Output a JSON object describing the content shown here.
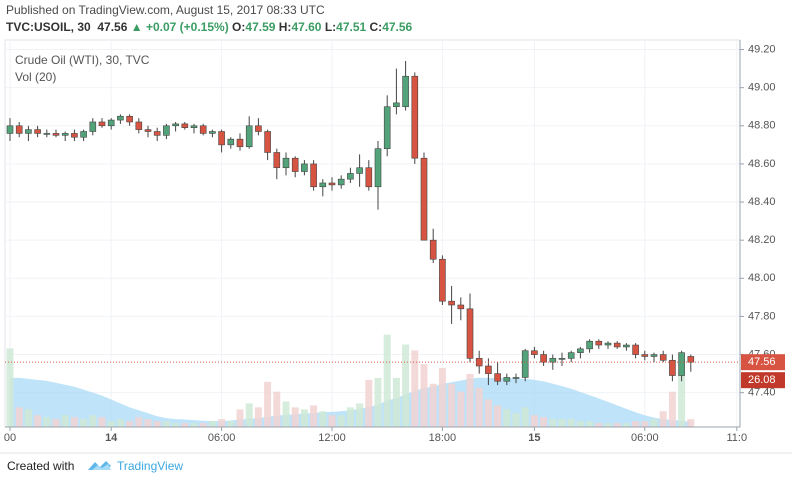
{
  "header": {
    "published": "Published on TradingView.com, August 15, 2017 08:33 UTC",
    "symbol": "TVC:USOIL, 30",
    "last": "47.56",
    "change": "+0.07 (+0.15%)",
    "ohlc": [
      {
        "label": "O:",
        "value": "47.59"
      },
      {
        "label": "H:",
        "value": "47.60"
      },
      {
        "label": "L:",
        "value": "47.51"
      },
      {
        "label": "C:",
        "value": "47.56"
      }
    ]
  },
  "footer": {
    "created": "Created with",
    "brand": "TradingView"
  },
  "chart_data": {
    "type": "candlestick",
    "title": "Crude Oil (WTI), 30, TVC",
    "volume_title": "Vol (20)",
    "up_color": "#53a37a",
    "down_color": "#d75442",
    "volume_up_color": "#cfe9d6",
    "volume_down_color": "#f1d4d2",
    "ma_color": "#a9d9f5",
    "grid": true,
    "categories": [
      "00",
      null,
      null,
      null,
      null,
      null,
      null,
      null,
      null,
      null,
      null,
      "14",
      null,
      null,
      null,
      null,
      null,
      null,
      null,
      null,
      null,
      null,
      null,
      "06:00",
      null,
      null,
      null,
      null,
      null,
      null,
      null,
      null,
      null,
      null,
      null,
      "12:00",
      null,
      null,
      null,
      null,
      null,
      null,
      null,
      null,
      null,
      null,
      null,
      "18:00",
      null,
      null,
      null,
      null,
      null,
      null,
      null,
      null,
      null,
      "15",
      null,
      null,
      null,
      null,
      null,
      null,
      null,
      null,
      null,
      null,
      null,
      "06:00",
      null,
      null,
      null,
      null,
      null,
      null,
      null,
      null,
      null,
      "11:0"
    ],
    "open": [
      48.76,
      48.8,
      48.76,
      48.78,
      48.76,
      48.76,
      48.75,
      48.76,
      48.74,
      48.77,
      48.82,
      48.8,
      48.83,
      48.85,
      48.82,
      48.78,
      48.77,
      48.75,
      48.8,
      48.81,
      48.79,
      48.8,
      48.76,
      48.77,
      48.7,
      48.73,
      48.69,
      48.8,
      48.77,
      48.66,
      48.58,
      48.63,
      48.56,
      48.6,
      48.48,
      48.5,
      48.49,
      48.52,
      48.55,
      48.58,
      48.48,
      48.68,
      48.9,
      48.9,
      49.06,
      48.63,
      48.2,
      48.1,
      47.88,
      47.86,
      47.84,
      47.58,
      47.54,
      47.5,
      47.46,
      47.48,
      47.48,
      47.62,
      47.6,
      47.56,
      47.58,
      47.58,
      47.61,
      47.63,
      47.67,
      47.65,
      47.66,
      47.64,
      47.65,
      47.6,
      47.59,
      47.6,
      47.57,
      47.49,
      47.59,
      null,
      null,
      null,
      null,
      null
    ],
    "high": [
      48.84,
      48.82,
      48.8,
      48.8,
      48.78,
      48.78,
      48.77,
      48.78,
      48.78,
      48.84,
      48.84,
      48.84,
      48.86,
      48.86,
      48.84,
      48.8,
      48.79,
      48.81,
      48.82,
      48.82,
      48.81,
      48.81,
      48.78,
      48.78,
      48.74,
      48.76,
      48.85,
      48.84,
      48.78,
      48.68,
      48.66,
      48.64,
      48.62,
      48.62,
      48.52,
      48.53,
      48.54,
      48.58,
      48.65,
      48.62,
      48.72,
      48.96,
      49.1,
      49.14,
      49.08,
      48.66,
      48.26,
      48.12,
      47.96,
      47.9,
      47.92,
      47.62,
      47.58,
      47.56,
      47.5,
      47.5,
      47.63,
      47.64,
      47.62,
      47.6,
      47.61,
      47.62,
      47.64,
      47.68,
      47.68,
      47.67,
      47.67,
      47.66,
      47.66,
      47.62,
      47.61,
      47.62,
      47.6,
      47.62,
      47.6,
      null,
      null,
      null,
      null,
      null
    ],
    "low": [
      48.72,
      48.74,
      48.72,
      48.74,
      48.74,
      48.74,
      48.72,
      48.72,
      48.72,
      48.75,
      48.79,
      48.78,
      48.81,
      48.8,
      48.76,
      48.74,
      48.72,
      48.73,
      48.77,
      48.78,
      48.76,
      48.75,
      48.74,
      48.66,
      48.68,
      48.67,
      48.68,
      48.75,
      48.62,
      48.52,
      48.54,
      48.53,
      48.54,
      48.46,
      48.43,
      48.46,
      48.47,
      48.5,
      48.48,
      48.46,
      48.36,
      48.64,
      48.86,
      48.88,
      48.6,
      48.2,
      48.08,
      47.86,
      47.76,
      47.78,
      47.56,
      47.5,
      47.44,
      47.44,
      47.44,
      47.45,
      47.46,
      47.58,
      47.54,
      47.52,
      47.54,
      47.56,
      47.58,
      47.61,
      47.63,
      47.63,
      47.63,
      47.62,
      47.58,
      47.57,
      47.56,
      47.56,
      47.46,
      47.46,
      47.51,
      null,
      null,
      null,
      null,
      null
    ],
    "close": [
      48.8,
      48.76,
      48.78,
      48.76,
      48.76,
      48.75,
      48.76,
      48.74,
      48.77,
      48.82,
      48.8,
      48.83,
      48.85,
      48.82,
      48.78,
      48.77,
      48.75,
      48.8,
      48.81,
      48.79,
      48.8,
      48.76,
      48.77,
      48.7,
      48.73,
      48.69,
      48.8,
      48.77,
      48.66,
      48.58,
      48.63,
      48.56,
      48.6,
      48.48,
      48.5,
      48.49,
      48.52,
      48.55,
      48.58,
      48.48,
      48.68,
      48.9,
      48.92,
      49.06,
      48.63,
      48.2,
      48.1,
      47.88,
      47.86,
      47.84,
      47.58,
      47.54,
      47.5,
      47.46,
      47.48,
      47.48,
      47.62,
      47.6,
      47.56,
      47.58,
      47.58,
      47.61,
      47.63,
      47.67,
      47.65,
      47.66,
      47.64,
      47.65,
      47.6,
      47.59,
      47.6,
      47.57,
      47.49,
      47.61,
      47.56,
      null,
      null,
      null,
      null,
      null
    ],
    "volume": [
      400,
      100,
      90,
      60,
      50,
      40,
      60,
      50,
      40,
      60,
      50,
      30,
      40,
      30,
      50,
      40,
      30,
      30,
      20,
      20,
      20,
      20,
      30,
      40,
      30,
      90,
      120,
      100,
      230,
      180,
      130,
      100,
      90,
      110,
      80,
      60,
      60,
      100,
      120,
      240,
      250,
      470,
      250,
      420,
      390,
      320,
      220,
      300,
      220,
      180,
      270,
      200,
      140,
      110,
      90,
      70,
      100,
      60,
      50,
      40,
      40,
      40,
      30,
      30,
      20,
      20,
      20,
      20,
      30,
      30,
      40,
      80,
      180,
      280,
      40,
      null,
      null,
      null,
      null,
      null
    ],
    "vol_ma": [
      250,
      250,
      245,
      240,
      235,
      225,
      215,
      205,
      190,
      175,
      160,
      140,
      120,
      100,
      85,
      70,
      55,
      45,
      40,
      38,
      35,
      32,
      30,
      30,
      33,
      38,
      42,
      45,
      52,
      58,
      62,
      65,
      68,
      72,
      75,
      77,
      80,
      85,
      92,
      102,
      113,
      135,
      147,
      166,
      183,
      198,
      207,
      219,
      228,
      236,
      246,
      251,
      250,
      250,
      250,
      247,
      245,
      240,
      232,
      220,
      208,
      195,
      178,
      162,
      145,
      128,
      110,
      92,
      75,
      60,
      48,
      40,
      35,
      33,
      26.08,
      null,
      null,
      null,
      null,
      null
    ],
    "ylim": [
      47.22,
      49.25
    ],
    "yticks": [
      {
        "value": 47.4,
        "label": "47.40"
      },
      {
        "value": 47.6,
        "label": "47.60"
      },
      {
        "value": 47.8,
        "label": "47.80"
      },
      {
        "value": 48,
        "label": "48.00"
      },
      {
        "value": 48.2,
        "label": "48.20"
      },
      {
        "value": 48.4,
        "label": "48.40"
      },
      {
        "value": 48.6,
        "label": "48.60"
      },
      {
        "value": 48.8,
        "label": "48.80"
      },
      {
        "value": 49,
        "label": "49.00"
      },
      {
        "value": 49.2,
        "label": "49.20"
      }
    ],
    "vol_ylim": [
      0,
      560
    ]
  }
}
